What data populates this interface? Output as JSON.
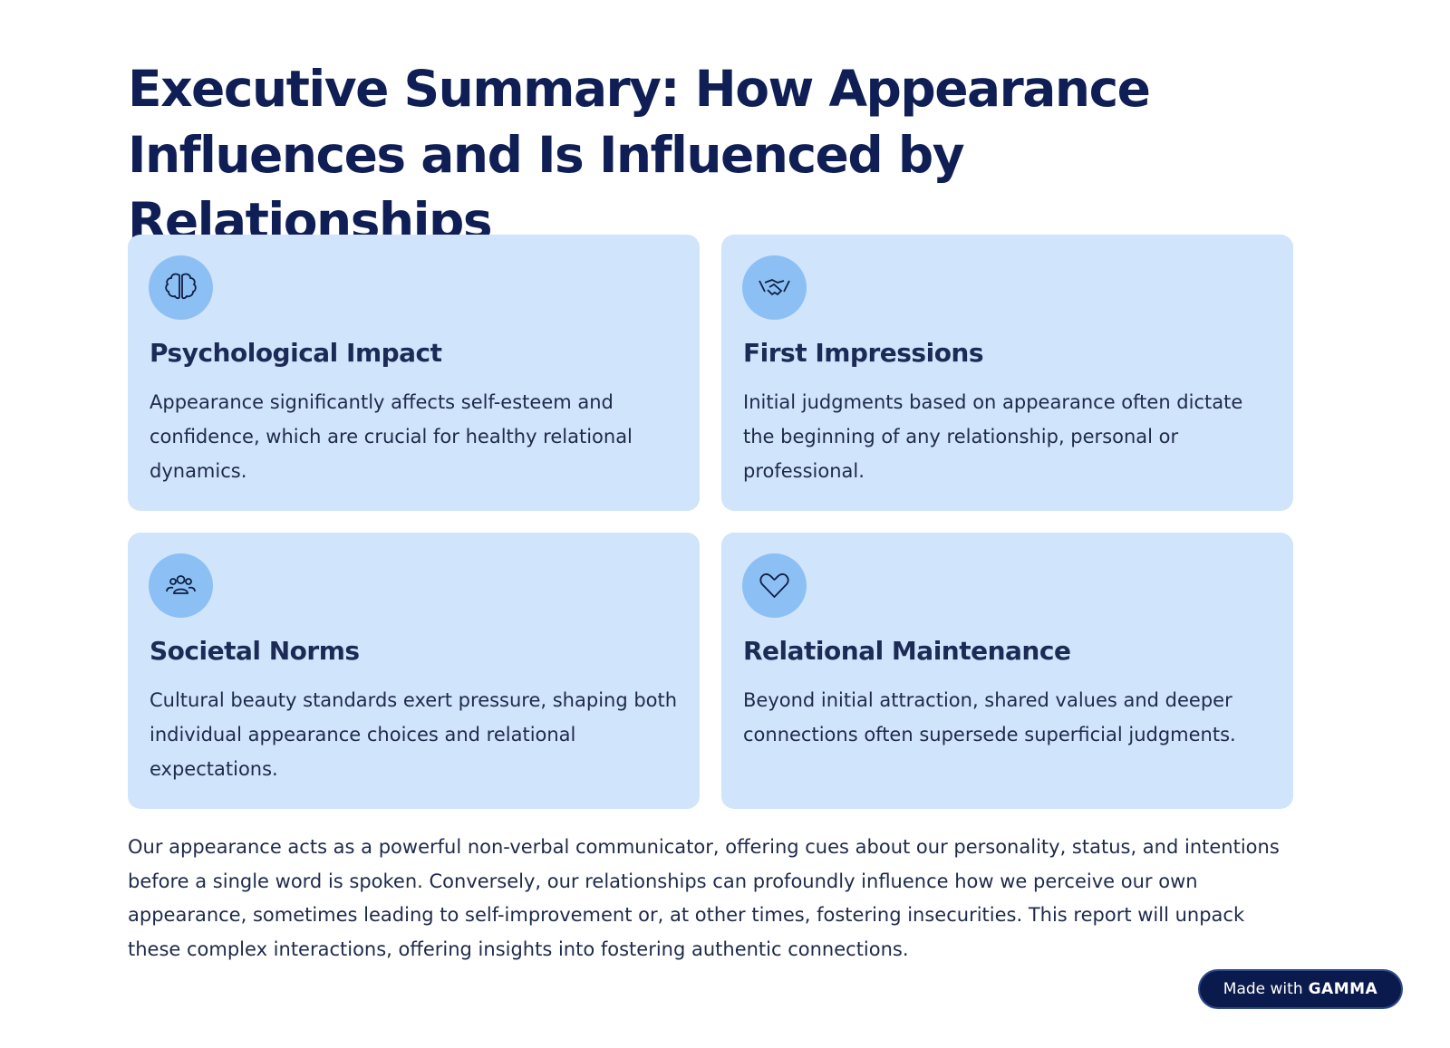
{
  "header": {
    "title": "Executive Summary: How Appearance Influences and Is Influenced by Relationships"
  },
  "cards": [
    {
      "title": "Psychological Impact",
      "body": "Appearance significantly affects self-esteem and confidence, which are crucial for healthy relational dynamics."
    },
    {
      "title": "First Impressions",
      "body": "Initial judgments based on appearance often dictate the beginning of any relationship, personal or professional."
    },
    {
      "title": "Societal Norms",
      "body": "Cultural beauty standards exert pressure, shaping both individual appearance choices and relational expectations."
    },
    {
      "title": "Relational Maintenance",
      "body": "Beyond initial attraction, shared values and deeper connections often supersede superficial judgments."
    }
  ],
  "summary": "Our appearance acts as a powerful non-verbal communicator, offering cues about our personality, status, and intentions before a single word is spoken. Conversely, our relationships can profoundly influence how we perceive our own appearance, sometimes leading to self-improvement or, at other times, fostering insecurities. This report will unpack these complex interactions, offering insights into fostering authentic connections.",
  "badge": {
    "prefix": "Made with",
    "brand": "GAMMA"
  }
}
